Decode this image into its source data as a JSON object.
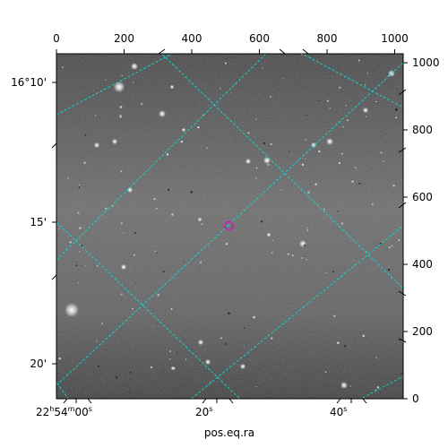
{
  "figure": {
    "xlabel": "pos.eq.ra",
    "ylabel": "",
    "pixel_x_ticks": [
      "0",
      "200",
      "400",
      "600",
      "800",
      "1000"
    ],
    "pixel_y_ticks": [
      "0",
      "200",
      "400",
      "600",
      "800",
      "1000"
    ],
    "ra_ticks": [
      {
        "h": "22",
        "m": "54",
        "s": "00",
        "text_h": "h",
        "text_m": "m",
        "text_s": "s"
      },
      {
        "s": "20",
        "text_s": "s"
      },
      {
        "s": "40",
        "text_s": "s"
      }
    ],
    "dec_ticks": [
      "16°10'",
      "15'",
      "20'"
    ],
    "colors": {
      "grid": "#00e0e0",
      "marker": "#c020c0",
      "image_background": "#5a5a5a"
    },
    "marker_symbol": "circle-marker"
  }
}
